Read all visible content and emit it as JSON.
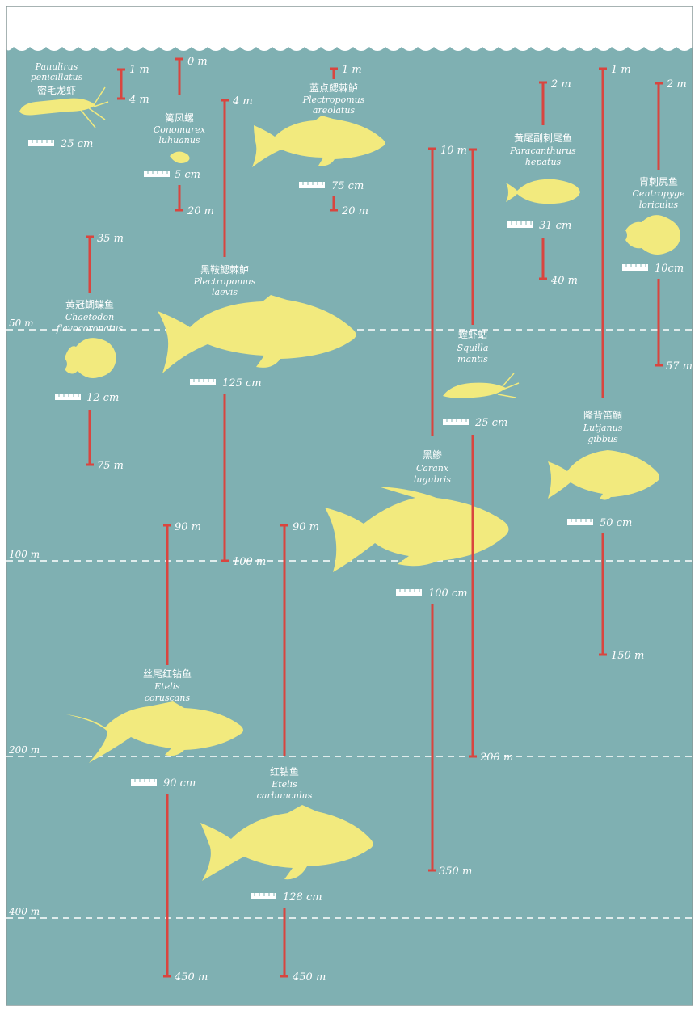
{
  "colors": {
    "water": "#7fb0b2",
    "surface": "#ffffff",
    "fish": "#f2ea7e",
    "range_bar": "#d9453f",
    "text": "#ffffff",
    "border": "#8a9a9a"
  },
  "reference_lines": [
    {
      "label": "50 m"
    },
    {
      "label": "100 m"
    },
    {
      "label": "200 m"
    },
    {
      "label": "400 m"
    }
  ],
  "species": [
    {
      "id": "panulirus",
      "name_zh": "密毛龙虾",
      "name_lat": [
        "Panulirus",
        "penicillatus"
      ],
      "size": "25 cm",
      "depth_min": "1 m",
      "depth_max": "4 m",
      "icon": "lobster-icon"
    },
    {
      "id": "conomurex",
      "name_zh": "篱凤螺",
      "name_lat": [
        "Conomurex",
        "luhuanus"
      ],
      "size": "5 cm",
      "depth_min": "0 m",
      "depth_max": "20 m",
      "icon": "conch-icon"
    },
    {
      "id": "plectropomus-laevis",
      "name_zh": "黑鞍鳃棘鲈",
      "name_lat": [
        "Plectropomus",
        "laevis"
      ],
      "size": "125 cm",
      "depth_min": "4 m",
      "depth_max": "100 m",
      "icon": "grouper-icon"
    },
    {
      "id": "plectropomus-areolatus",
      "name_zh": "蓝点鳃棘鲈",
      "name_lat": [
        "Plectropomus",
        "areolatus"
      ],
      "size": "75 cm",
      "depth_min": "1 m",
      "depth_max": "20 m",
      "icon": "grouper-icon"
    },
    {
      "id": "chaetodon",
      "name_zh": "黄冠蝴蝶鱼",
      "name_lat": [
        "Chaetodon",
        "flavocoronatus"
      ],
      "size": "12 cm",
      "depth_min": "35 m",
      "depth_max": "75 m",
      "icon": "butterflyfish-icon"
    },
    {
      "id": "caranx",
      "name_zh": "黑鲹",
      "name_lat": [
        "Caranx",
        "lugubris"
      ],
      "size": "100 cm",
      "depth_min": "10 m",
      "depth_max": "350 m",
      "icon": "trevally-icon"
    },
    {
      "id": "squilla",
      "name_zh": "螳虾蛄",
      "name_lat": [
        "Squilla",
        "mantis"
      ],
      "size": "25 cm",
      "depth_min": "10 m",
      "depth_max": "200 m",
      "icon": "mantis-shrimp-icon"
    },
    {
      "id": "paracanthurus",
      "name_zh": "黄尾副刺尾鱼",
      "name_lat": [
        "Paracanthurus",
        "hepatus"
      ],
      "size": "31 cm",
      "depth_min": "2 m",
      "depth_max": "40 m",
      "icon": "surgeonfish-icon"
    },
    {
      "id": "lutjanus",
      "name_zh": "隆背笛鲷",
      "name_lat": [
        "Lutjanus",
        "gibbus"
      ],
      "size": "50 cm",
      "depth_min": "1 m",
      "depth_max": "150 m",
      "icon": "snapper-icon"
    },
    {
      "id": "centropyge",
      "name_zh": "胄刺尻鱼",
      "name_lat": [
        "Centropyge",
        "loriculus"
      ],
      "size": "10cm",
      "depth_min": "2 m",
      "depth_max": "57 m",
      "icon": "angelfish-icon"
    },
    {
      "id": "etelis-coruscans",
      "name_zh": "丝尾红钻鱼",
      "name_lat": [
        "Etelis",
        "coruscans"
      ],
      "size": "90 cm",
      "depth_min": "90 m",
      "depth_max": "450 m",
      "icon": "snapper-icon"
    },
    {
      "id": "etelis-carbunculus",
      "name_zh": "红钻鱼",
      "name_lat": [
        "Etelis",
        "carbunculus"
      ],
      "size": "128 cm",
      "depth_min": "90 m",
      "depth_max": "450 m",
      "icon": "snapper-icon"
    }
  ]
}
